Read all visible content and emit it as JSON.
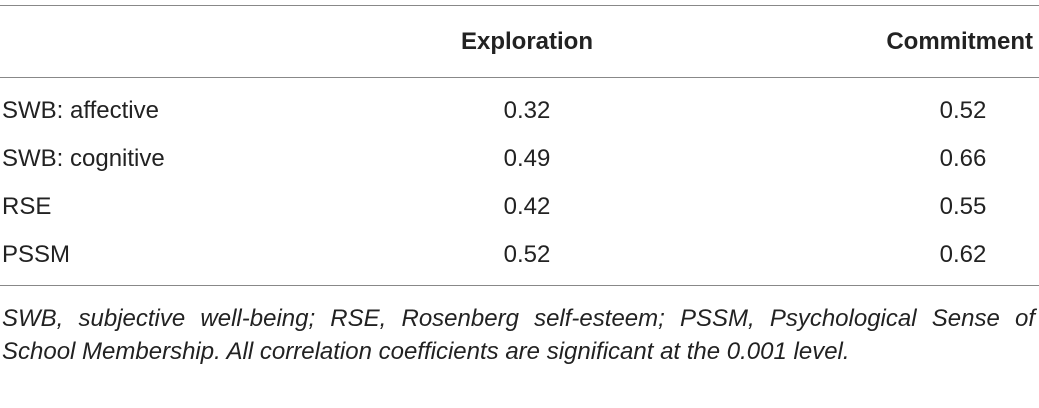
{
  "table": {
    "columns": [
      "Exploration",
      "Commitment"
    ],
    "rows": [
      {
        "label": "SWB: affective",
        "values": [
          "0.32",
          "0.52"
        ]
      },
      {
        "label": "SWB: cognitive",
        "values": [
          "0.49",
          "0.66"
        ]
      },
      {
        "label": "RSE",
        "values": [
          "0.42",
          "0.55"
        ]
      },
      {
        "label": "PSSM",
        "values": [
          "0.52",
          "0.62"
        ]
      }
    ],
    "footnote": "SWB, subjective well-being; RSE, Rosenberg self-esteem; PSSM, Psychological Sense of School Membership. All correlation coefficients are significant at the 0.001 level."
  }
}
